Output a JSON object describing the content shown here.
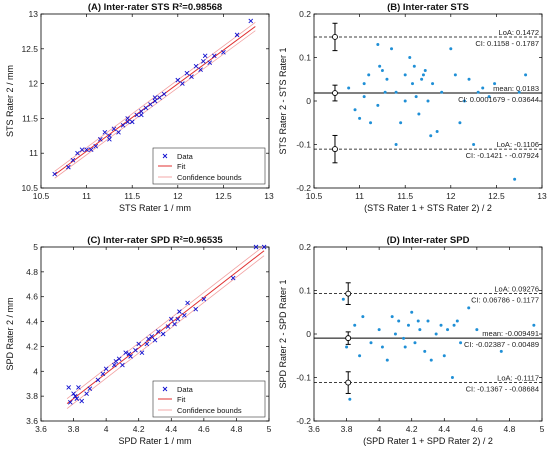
{
  "colors": {
    "data": "#1010d0",
    "fit": "#e03030",
    "bounds": "#f2a0a0",
    "dots": "#1f8fd6",
    "axis": "#000000"
  },
  "chart_data": [
    {
      "id": "A",
      "type": "scatter",
      "title": "(A) Inter-rater STS R²=0.98568",
      "xlabel": "STS Rater 1 / mm",
      "ylabel": "STS Rater 2 / mm",
      "xlim": [
        10.5,
        13
      ],
      "ylim": [
        10.5,
        13
      ],
      "xticks": [
        10.5,
        11,
        11.5,
        12,
        12.5,
        13
      ],
      "xtick_labels": [
        "10.5",
        "11",
        "11.5",
        "12",
        "12.5",
        "13"
      ],
      "yticks": [
        10.5,
        11,
        11.5,
        12,
        12.5,
        13
      ],
      "ytick_labels": [
        "10.5",
        "11",
        "11.5",
        "12",
        "12.5",
        "13"
      ],
      "legend": {
        "placement": "bottom-right",
        "entries": [
          "Data",
          "Fit",
          "Confidence bounds"
        ]
      },
      "fit": {
        "x": [
          10.65,
          12.85
        ],
        "y": [
          10.69,
          12.82
        ]
      },
      "bounds_upper": {
        "x": [
          10.65,
          12.85
        ],
        "y": [
          10.74,
          12.88
        ]
      },
      "bounds_lower": {
        "x": [
          10.65,
          12.85
        ],
        "y": [
          10.64,
          12.76
        ]
      },
      "points": [
        [
          10.65,
          10.7
        ],
        [
          10.8,
          10.8
        ],
        [
          10.85,
          10.9
        ],
        [
          10.9,
          11.0
        ],
        [
          10.95,
          11.05
        ],
        [
          11.05,
          11.05
        ],
        [
          11.1,
          11.1
        ],
        [
          11.15,
          11.2
        ],
        [
          11.2,
          11.3
        ],
        [
          11.25,
          11.2
        ],
        [
          11.3,
          11.35
        ],
        [
          11.35,
          11.3
        ],
        [
          11.4,
          11.4
        ],
        [
          11.45,
          11.5
        ],
        [
          11.5,
          11.45
        ],
        [
          11.55,
          11.55
        ],
        [
          11.6,
          11.6
        ],
        [
          11.65,
          11.65
        ],
        [
          11.7,
          11.7
        ],
        [
          11.75,
          11.8
        ],
        [
          11.8,
          11.8
        ],
        [
          11.85,
          11.85
        ],
        [
          12.05,
          12.0
        ],
        [
          12.1,
          12.15
        ],
        [
          12.15,
          12.1
        ],
        [
          12.2,
          12.25
        ],
        [
          12.25,
          12.2
        ],
        [
          12.3,
          12.4
        ],
        [
          12.35,
          12.3
        ],
        [
          12.4,
          12.4
        ],
        [
          12.5,
          12.45
        ],
        [
          12.65,
          12.7
        ],
        [
          12.8,
          12.9
        ],
        [
          11.0,
          11.05
        ],
        [
          11.25,
          11.25
        ],
        [
          11.45,
          11.45
        ],
        [
          11.6,
          11.55
        ],
        [
          11.75,
          11.75
        ],
        [
          12.0,
          12.05
        ],
        [
          12.28,
          12.32
        ]
      ]
    },
    {
      "id": "B",
      "type": "scatter",
      "title": "(B) Inter-rater STS",
      "xlabel": "(STS Rater 1 + STS Rater 2) / 2",
      "ylabel": "STS Rater 2 - STS Rater 1",
      "xlim": [
        10.5,
        13
      ],
      "ylim": [
        -0.2,
        0.2
      ],
      "xticks": [
        10.5,
        11,
        11.5,
        12,
        12.5,
        13
      ],
      "xtick_labels": [
        "10.5",
        "11",
        "11.5",
        "12",
        "12.5",
        "13"
      ],
      "yticks": [
        -0.2,
        -0.1,
        0,
        0.1,
        0.2
      ],
      "ytick_labels": [
        "-0.2",
        "-0.1",
        "0",
        "0.1",
        "0.2"
      ],
      "mean": 0.0183,
      "upper_loa": 0.1472,
      "lower_loa": -0.1106,
      "marker_x": 10.73,
      "error_bars": [
        {
          "y": 0.1472,
          "low": 0.1158,
          "high": 0.1787
        },
        {
          "y": 0.0183,
          "low": 0.0002,
          "high": 0.0364
        },
        {
          "y": -0.1106,
          "low": -0.1421,
          "high": -0.0792
        }
      ],
      "annotations": [
        {
          "line": "upper",
          "text1": "LoA: 0.1472",
          "text2": "CI: 0.1158 - 0.1787"
        },
        {
          "line": "mean",
          "text1": "mean: 0.0183",
          "text2": "CI: 0.0001679 - 0.03644"
        },
        {
          "line": "lower",
          "text1": "LoA: -0.1106",
          "text2": "CI: -0.1421 - -0.07924"
        }
      ],
      "points": [
        [
          10.88,
          0.03
        ],
        [
          10.95,
          -0.02
        ],
        [
          11.0,
          -0.04
        ],
        [
          11.05,
          0.04
        ],
        [
          11.1,
          0.06
        ],
        [
          11.12,
          -0.05
        ],
        [
          11.2,
          0.13
        ],
        [
          11.22,
          0.08
        ],
        [
          11.28,
          0.02
        ],
        [
          11.3,
          0.05
        ],
        [
          11.35,
          0.12
        ],
        [
          11.4,
          -0.1
        ],
        [
          11.45,
          -0.05
        ],
        [
          11.5,
          0.06
        ],
        [
          11.5,
          0.0
        ],
        [
          11.55,
          0.1
        ],
        [
          11.58,
          0.04
        ],
        [
          11.62,
          0.01
        ],
        [
          11.65,
          -0.03
        ],
        [
          11.68,
          0.05
        ],
        [
          11.72,
          0.07
        ],
        [
          11.75,
          0.0
        ],
        [
          11.78,
          -0.08
        ],
        [
          11.8,
          0.04
        ],
        [
          11.85,
          -0.07
        ],
        [
          11.9,
          0.02
        ],
        [
          11.2,
          -0.01
        ],
        [
          11.25,
          0.07
        ],
        [
          11.05,
          0.01
        ],
        [
          11.4,
          0.02
        ],
        [
          11.6,
          0.08
        ],
        [
          11.7,
          0.06
        ],
        [
          12.0,
          0.12
        ],
        [
          12.05,
          0.06
        ],
        [
          12.1,
          -0.05
        ],
        [
          12.15,
          0.0
        ],
        [
          12.2,
          0.05
        ],
        [
          12.25,
          -0.1
        ],
        [
          12.3,
          0.02
        ],
        [
          12.35,
          0.03
        ],
        [
          12.42,
          0.01
        ],
        [
          12.48,
          0.04
        ],
        [
          12.7,
          -0.18
        ],
        [
          12.75,
          0.02
        ],
        [
          12.82,
          0.06
        ]
      ]
    },
    {
      "id": "C",
      "type": "scatter",
      "title": "(C) Inter-rater SPD R²=0.96535",
      "xlabel": "SPD Rater 1 / mm",
      "ylabel": "SPD Rater 2 / mm",
      "xlim": [
        3.6,
        5
      ],
      "ylim": [
        3.6,
        5
      ],
      "xticks": [
        3.6,
        3.8,
        4,
        4.2,
        4.4,
        4.6,
        4.8,
        5
      ],
      "xtick_labels": [
        "3.6",
        "3.8",
        "4",
        "4.2",
        "4.4",
        "4.6",
        "4.8",
        "5"
      ],
      "yticks": [
        3.6,
        3.8,
        4,
        4.2,
        4.4,
        4.6,
        4.8,
        5
      ],
      "ytick_labels": [
        "3.6",
        "3.8",
        "4",
        "4.2",
        "4.4",
        "4.6",
        "4.8",
        "5"
      ],
      "legend": {
        "placement": "bottom-right",
        "entries": [
          "Data",
          "Fit",
          "Confidence bounds"
        ]
      },
      "fit": {
        "x": [
          3.76,
          4.97
        ],
        "y": [
          3.74,
          4.97
        ]
      },
      "bounds_upper": {
        "x": [
          3.76,
          4.97
        ],
        "y": [
          3.78,
          5.01
        ]
      },
      "bounds_lower": {
        "x": [
          3.76,
          4.97
        ],
        "y": [
          3.7,
          4.93
        ]
      },
      "points": [
        [
          3.77,
          3.87
        ],
        [
          3.78,
          3.75
        ],
        [
          3.8,
          3.82
        ],
        [
          3.82,
          3.78
        ],
        [
          3.83,
          3.87
        ],
        [
          3.85,
          3.76
        ],
        [
          3.88,
          3.82
        ],
        [
          3.9,
          3.86
        ],
        [
          3.95,
          3.93
        ],
        [
          3.98,
          3.98
        ],
        [
          4.0,
          4.02
        ],
        [
          4.05,
          4.05
        ],
        [
          4.08,
          4.1
        ],
        [
          4.1,
          4.05
        ],
        [
          4.12,
          4.15
        ],
        [
          4.15,
          4.12
        ],
        [
          4.18,
          4.17
        ],
        [
          4.2,
          4.22
        ],
        [
          4.22,
          4.15
        ],
        [
          4.25,
          4.22
        ],
        [
          4.28,
          4.28
        ],
        [
          4.3,
          4.25
        ],
        [
          4.32,
          4.32
        ],
        [
          4.35,
          4.3
        ],
        [
          4.38,
          4.36
        ],
        [
          4.4,
          4.42
        ],
        [
          4.42,
          4.38
        ],
        [
          4.45,
          4.48
        ],
        [
          4.48,
          4.45
        ],
        [
          4.5,
          4.55
        ],
        [
          4.55,
          4.5
        ],
        [
          4.6,
          4.58
        ],
        [
          4.78,
          4.75
        ],
        [
          4.92,
          5.0
        ],
        [
          4.97,
          5.0
        ],
        [
          3.81,
          3.8
        ],
        [
          4.14,
          4.14
        ],
        [
          4.26,
          4.26
        ],
        [
          4.06,
          4.08
        ],
        [
          4.44,
          4.42
        ]
      ]
    },
    {
      "id": "D",
      "type": "scatter",
      "title": "(D) Inter-rater SPD",
      "xlabel": "(SPD Rater 1 + SPD Rater 2) / 2",
      "ylabel": "SPD Rater 2 - SPD Rater 1",
      "xlim": [
        3.6,
        5
      ],
      "ylim": [
        -0.2,
        0.2
      ],
      "xticks": [
        3.6,
        3.8,
        4,
        4.2,
        4.4,
        4.6,
        4.8,
        5
      ],
      "xtick_labels": [
        "3.6",
        "3.8",
        "4",
        "4.2",
        "4.4",
        "4.6",
        "4.8",
        "5"
      ],
      "yticks": [
        -0.2,
        -0.1,
        0,
        0.1,
        0.2
      ],
      "ytick_labels": [
        "-0.2",
        "-0.1",
        "0",
        "0.1",
        "0.2"
      ],
      "mean": -0.009491,
      "upper_loa": 0.09276,
      "lower_loa": -0.1117,
      "marker_x": 3.81,
      "error_bars": [
        {
          "y": 0.09276,
          "low": 0.06786,
          "high": 0.1177
        },
        {
          "y": -0.009491,
          "low": -0.02387,
          "high": 0.00489
        },
        {
          "y": -0.1117,
          "low": -0.1367,
          "high": -0.08684
        }
      ],
      "annotations": [
        {
          "line": "upper",
          "text1": "LoA: 0.09276",
          "text2": "CI: 0.06786 - 0.1177"
        },
        {
          "line": "mean",
          "text1": "mean: -0.009491",
          "text2": "CI: -0.02387 - 0.00489"
        },
        {
          "line": "lower",
          "text1": "LoA: -0.1117",
          "text2": "CI: -0.1367 - -0.08684"
        }
      ],
      "points": [
        [
          3.78,
          0.08
        ],
        [
          3.8,
          -0.03
        ],
        [
          3.82,
          -0.15
        ],
        [
          3.85,
          0.02
        ],
        [
          3.88,
          -0.05
        ],
        [
          3.9,
          0.04
        ],
        [
          3.95,
          -0.02
        ],
        [
          4.0,
          0.01
        ],
        [
          4.05,
          -0.06
        ],
        [
          4.1,
          0.0
        ],
        [
          4.12,
          0.03
        ],
        [
          4.15,
          -0.01
        ],
        [
          4.18,
          0.02
        ],
        [
          4.2,
          0.05
        ],
        [
          4.22,
          -0.02
        ],
        [
          4.25,
          0.01
        ],
        [
          4.28,
          -0.04
        ],
        [
          4.3,
          0.03
        ],
        [
          4.32,
          -0.06
        ],
        [
          4.35,
          0.0
        ],
        [
          4.38,
          0.02
        ],
        [
          4.4,
          -0.05
        ],
        [
          4.42,
          0.01
        ],
        [
          4.45,
          -0.1
        ],
        [
          4.48,
          0.03
        ],
        [
          4.5,
          -0.02
        ],
        [
          4.55,
          0.06
        ],
        [
          4.6,
          0.01
        ],
        [
          4.75,
          -0.04
        ],
        [
          4.95,
          0.02
        ],
        [
          4.08,
          0.04
        ],
        [
          4.16,
          -0.03
        ],
        [
          4.24,
          0.03
        ],
        [
          4.46,
          0.02
        ],
        [
          4.02,
          -0.03
        ]
      ]
    }
  ]
}
